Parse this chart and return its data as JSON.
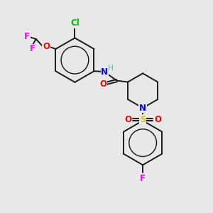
{
  "bg": "#e8e8e8",
  "bond_color": "#1a1a1a",
  "bw": 1.4,
  "colors": {
    "N": "#0000ff",
    "O": "#ff0000",
    "S": "#cccc00",
    "F": "#ff00ff",
    "Cl": "#00bb00",
    "H": "#4dbbbb"
  },
  "figsize": [
    3.0,
    3.0
  ],
  "dpi": 100,
  "xl": [
    0,
    10
  ],
  "yl": [
    0,
    10
  ]
}
